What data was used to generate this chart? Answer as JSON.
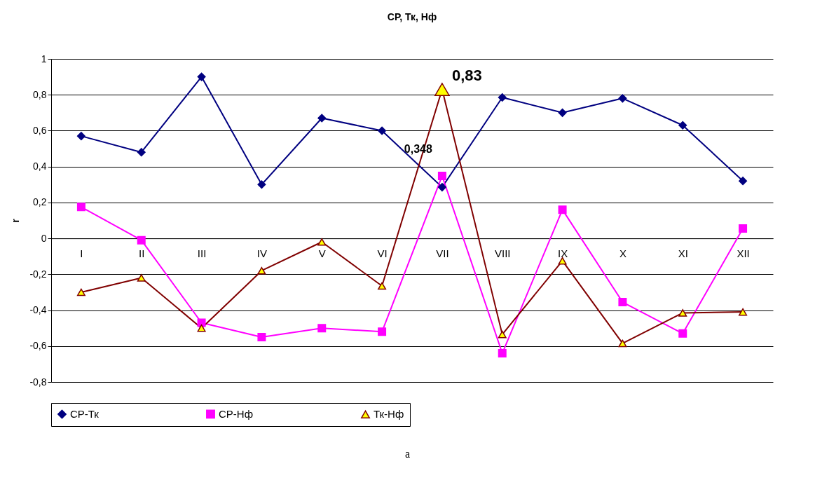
{
  "chart_data": {
    "type": "line",
    "title": "СР, Тк, Нф",
    "ylabel": "r",
    "categories": [
      "I",
      "II",
      "III",
      "IV",
      "V",
      "VI",
      "VII",
      "VIII",
      "IX",
      "X",
      "XI",
      "XII"
    ],
    "series": [
      {
        "name": "СР-Тк",
        "color": "#000080",
        "marker": "diamond",
        "values": [
          0.57,
          0.48,
          0.9,
          0.3,
          0.67,
          0.6,
          0.285,
          0.785,
          0.7,
          0.78,
          0.63,
          0.32
        ]
      },
      {
        "name": "СР-Нф",
        "color": "#ff00ff",
        "marker": "square",
        "values": [
          0.175,
          -0.01,
          -0.47,
          -0.55,
          -0.5,
          -0.52,
          0.348,
          -0.64,
          0.16,
          -0.355,
          -0.53,
          0.055
        ]
      },
      {
        "name": "Тк-Нф",
        "color": "#800000",
        "marker": "triangle",
        "values": [
          -0.3,
          -0.22,
          -0.5,
          -0.18,
          -0.02,
          -0.265,
          0.83,
          -0.535,
          -0.125,
          -0.585,
          -0.415,
          -0.41
        ]
      }
    ],
    "ylim": [
      -0.8,
      1
    ],
    "yticks": [
      {
        "value": -0.8,
        "label": "-0,8"
      },
      {
        "value": -0.6,
        "label": "-0,6"
      },
      {
        "value": -0.4,
        "label": "-0,4"
      },
      {
        "value": -0.2,
        "label": "-0,2"
      },
      0,
      {
        "value": 0.2,
        "label": "0,2"
      },
      {
        "value": 0.4,
        "label": "0,4"
      },
      {
        "value": 0.6,
        "label": "0,6"
      },
      {
        "value": 0.8,
        "label": "0,8"
      },
      1
    ],
    "grid": "y",
    "legend": "bottom",
    "annotations": [
      {
        "text": "0,83",
        "x": "VII",
        "y": 0.83
      },
      {
        "text": "0,348",
        "x": "VII",
        "y": 0.348
      },
      "а"
    ]
  }
}
